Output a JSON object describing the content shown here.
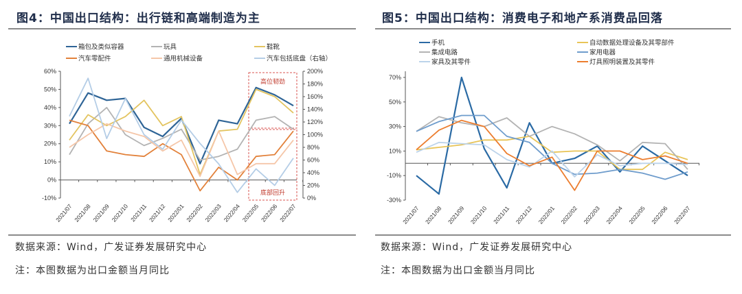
{
  "panels": [
    {
      "title": "图4：中国出口结构：出行链和高端制造为主",
      "source": "数据来源：Wind，广发证券发展研究中心",
      "note": "注：本图数据为出口金额当月同比"
    },
    {
      "title": "图5：中国出口结构：消费电子和地产系消费品回落",
      "source": "数据来源：Wind，广发证券发展研究中心",
      "note": "注：本图数据为出口金额当月同比"
    }
  ],
  "chart_data": [
    {
      "type": "line",
      "title": "图4：中国出口结构：出行链和高端制造为主",
      "categories": [
        "2021/07",
        "2021/08",
        "2021/09",
        "2021/10",
        "2021/11",
        "2021/12",
        "2022/01",
        "2022/02",
        "2022/03",
        "2022/04",
        "2022/05",
        "2022/06",
        "2022/07"
      ],
      "ylim": [
        -10,
        60
      ],
      "yticks": [
        "-10%",
        "0%",
        "10%",
        "20%",
        "30%",
        "40%",
        "50%",
        "60%"
      ],
      "y2lim": [
        0,
        200
      ],
      "y2ticks": [
        "0%",
        "20%",
        "40%",
        "60%",
        "80%",
        "100%",
        "120%",
        "140%",
        "160%",
        "180%",
        "200%"
      ],
      "series": [
        {
          "name": "箱包及类似容器",
          "color": "#2e6496",
          "axis": "left",
          "values": [
            31,
            48,
            44,
            45,
            29,
            24,
            34,
            9,
            33,
            31,
            51,
            47,
            41
          ]
        },
        {
          "name": "玩具",
          "color": "#b3b3b3",
          "axis": "left",
          "values": [
            14,
            31,
            40,
            25,
            19,
            23,
            28,
            11,
            13,
            17,
            33,
            35,
            28
          ]
        },
        {
          "name": "鞋靴",
          "color": "#e3c460",
          "axis": "left",
          "values": [
            22,
            36,
            30,
            35,
            44,
            30,
            35,
            3,
            27,
            28,
            50,
            46,
            37
          ]
        },
        {
          "name": "汽车零配件",
          "color": "#e2813a",
          "axis": "left",
          "values": [
            33,
            30,
            16,
            14,
            13,
            20,
            14,
            -6,
            7,
            0,
            13,
            14,
            27
          ]
        },
        {
          "name": "通用机械设备",
          "color": "#f5c6a8",
          "axis": "left",
          "values": [
            18,
            25,
            31,
            27,
            24,
            16,
            22,
            2,
            27,
            3,
            9,
            9,
            22
          ]
        },
        {
          "name": "汽车包括底盘（右轴）",
          "color": "#b4cde6",
          "axis": "right",
          "values": [
            129,
            189,
            94,
            157,
            100,
            77,
            123,
            86,
            54,
            9,
            46,
            20,
            63
          ]
        }
      ],
      "annotations": [
        "高位韧劲",
        "底部回升"
      ],
      "legend": "top"
    },
    {
      "type": "line",
      "title": "图5：中国出口结构：消费电子和地产系消费品回落",
      "categories": [
        "2021/07",
        "2021/08",
        "2021/09",
        "2021/10",
        "2021/11",
        "2021/12",
        "2022/01",
        "2022/02",
        "2022/03",
        "2022/04",
        "2022/05",
        "2022/06",
        "2022/07"
      ],
      "ylim": [
        -30,
        75
      ],
      "yticks": [
        "-30%",
        "-10%",
        "10%",
        "30%",
        "50%",
        "70%"
      ],
      "series": [
        {
          "name": "手机",
          "color": "#2a6aa4",
          "values": [
            -10,
            -25,
            70,
            12,
            -20,
            33,
            0,
            4,
            14,
            -7,
            14,
            2,
            -10
          ]
        },
        {
          "name": "自动数据处理设备及其零部件",
          "color": "#e8c457",
          "values": [
            11,
            13,
            15,
            19,
            19,
            22,
            9,
            10,
            10,
            -5,
            -5,
            9,
            3
          ]
        },
        {
          "name": "集成电路",
          "color": "#b3b3b3",
          "values": [
            26,
            38,
            33,
            30,
            37,
            22,
            30,
            24,
            15,
            2,
            17,
            16,
            -5
          ]
        },
        {
          "name": "家用电器",
          "color": "#6e9ccc",
          "values": [
            26,
            34,
            39,
            39,
            22,
            17,
            0,
            -9,
            -8,
            -5,
            -8,
            -13,
            -7
          ]
        },
        {
          "name": "家具及其零件",
          "color": "#bcd3ea",
          "values": [
            9,
            17,
            16,
            15,
            3,
            -3,
            10,
            -11,
            7,
            -2,
            0,
            0,
            -1
          ]
        },
        {
          "name": "灯具照明装置及其零件",
          "color": "#ec7d2e",
          "values": [
            11,
            27,
            35,
            30,
            8,
            -2,
            5,
            -22,
            10,
            10,
            3,
            6,
            0
          ]
        }
      ],
      "legend": "top"
    }
  ]
}
